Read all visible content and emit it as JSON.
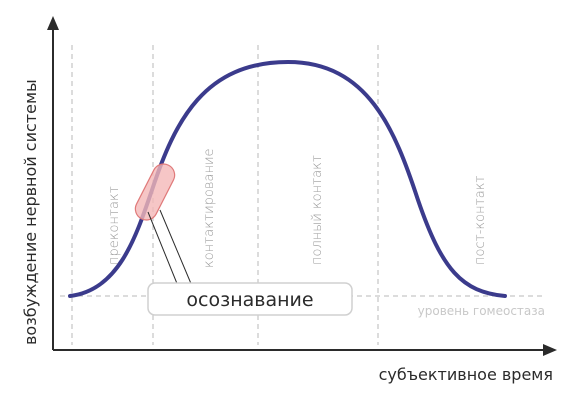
{
  "diagram": {
    "y_axis_label": "возбуждение нервной системы",
    "x_axis_label": "субъективное время",
    "homeostasis_label": "уровень гомеостаза",
    "phases": [
      "преконтакт",
      "контактирование",
      "полный контакт",
      "пост-контакт"
    ],
    "highlight_label": "осознавание",
    "colors": {
      "curve": "#3b3b8c",
      "axis": "#2b2b2b",
      "divider": "#b8b8b8",
      "highlight_fill": "#f4b8b8",
      "highlight_stroke": "#e07a7a"
    }
  }
}
